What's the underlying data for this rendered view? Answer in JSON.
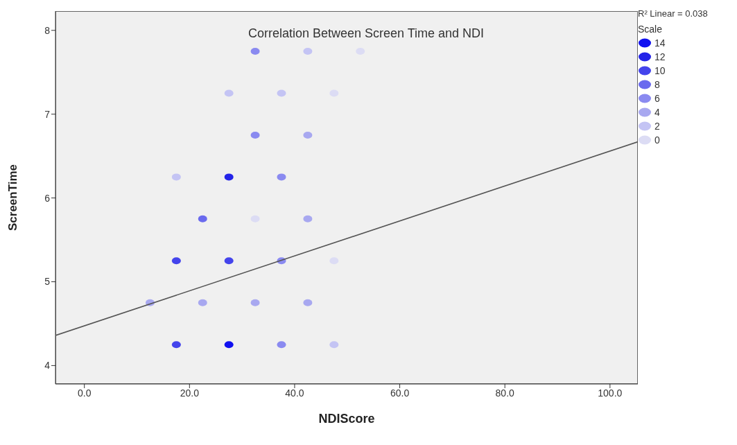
{
  "chart_data": {
    "type": "scatter",
    "title": "Correlation Between Screen Time and NDI",
    "xlabel": "NDIScore",
    "ylabel": "ScreenTime",
    "legend_title": "Scale",
    "legend": "top right",
    "annotations": [
      "R² Linear = 0.038"
    ],
    "xlim": [
      -5.5,
      105.3
    ],
    "ylim": [
      3.78,
      8.23
    ],
    "xticks": [
      {
        "value": 0,
        "label": "0.0"
      },
      {
        "value": 20,
        "label": "20.0"
      },
      {
        "value": 40,
        "label": "40.0"
      },
      {
        "value": 60,
        "label": "60.0"
      },
      {
        "value": 80,
        "label": "80.0"
      },
      {
        "value": 100,
        "label": "100.0"
      }
    ],
    "yticks": [
      4,
      5,
      6,
      7,
      8
    ],
    "series": [
      {
        "name": "14",
        "color": "#1010f0",
        "marker": "circle",
        "x": [
          27.5
        ],
        "values": [
          4.25
        ]
      },
      {
        "name": "12",
        "color": "#2424e8",
        "marker": "circle",
        "x": [
          27.5
        ],
        "values": [
          6.25
        ]
      },
      {
        "name": "10",
        "color": "#4444ec",
        "marker": "circle",
        "x": [
          17.5,
          27.5,
          17.5
        ],
        "values": [
          5.25,
          5.25,
          4.25
        ]
      },
      {
        "name": "8",
        "color": "#6a6aee",
        "marker": "circle",
        "x": [
          22.5
        ],
        "values": [
          5.75
        ]
      },
      {
        "name": "6",
        "color": "#8a8af0",
        "marker": "circle",
        "x": [
          32.5,
          32.5,
          37.5,
          37.5,
          37.5
        ],
        "values": [
          7.75,
          6.75,
          6.25,
          5.25,
          4.25
        ]
      },
      {
        "name": "4",
        "color": "#a8a8f0",
        "marker": "circle",
        "x": [
          42.5,
          42.5,
          12.5,
          22.5,
          32.5,
          42.5
        ],
        "values": [
          6.75,
          5.75,
          4.75,
          4.75,
          4.75,
          4.75
        ]
      },
      {
        "name": "2",
        "color": "#c4c4f4",
        "marker": "circle",
        "x": [
          42.5,
          27.5,
          37.5,
          17.5,
          47.5
        ],
        "values": [
          7.75,
          7.25,
          7.25,
          6.25,
          4.25
        ]
      },
      {
        "name": "0",
        "color": "#dcdcf4",
        "marker": "circle",
        "x": [
          52.5,
          47.5,
          32.5,
          47.5
        ],
        "values": [
          7.75,
          7.25,
          5.75,
          5.25
        ]
      },
      {
        "type": "line",
        "marker": "none",
        "x": [
          -5.5,
          105.3
        ],
        "values": [
          4.36,
          6.67
        ],
        "color": "#555555"
      }
    ]
  }
}
